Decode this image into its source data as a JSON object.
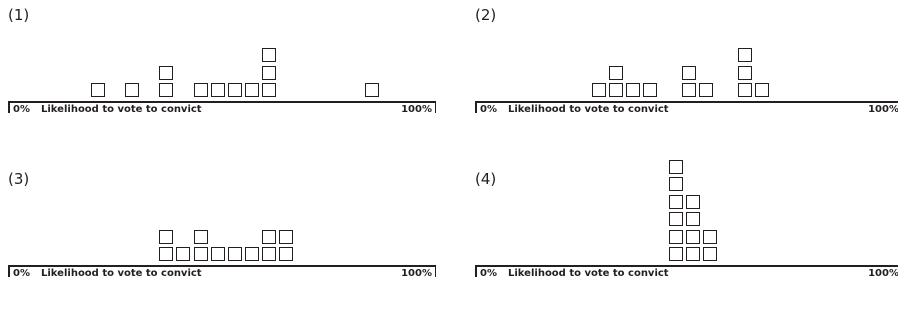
{
  "chart_data": [
    {
      "type": "dot-plot",
      "title": "(1)",
      "xlabel": "Likelihood to vote to convict",
      "xmin_label": "0%",
      "xmax_label": "100%",
      "xlim": [
        0,
        100
      ],
      "bins": [
        21,
        29,
        37,
        45,
        49,
        53,
        57,
        61,
        85
      ],
      "counts": [
        1,
        1,
        2,
        1,
        1,
        1,
        1,
        3,
        1
      ]
    },
    {
      "type": "dot-plot",
      "title": "(2)",
      "xlabel": "Likelihood to vote to convict",
      "xmin_label": "0%",
      "xmax_label": "100%",
      "xlim": [
        0,
        100
      ],
      "bins": [
        29,
        33,
        37,
        41,
        50,
        54,
        63,
        67
      ],
      "counts": [
        1,
        2,
        1,
        1,
        2,
        1,
        3,
        1
      ]
    },
    {
      "type": "dot-plot",
      "title": "(3)",
      "xlabel": "Likelihood to vote to convict",
      "xmin_label": "0%",
      "xmax_label": "100%",
      "xlim": [
        0,
        100
      ],
      "bins": [
        37,
        41,
        45,
        49,
        53,
        57,
        61,
        65
      ],
      "counts": [
        2,
        1,
        2,
        1,
        1,
        1,
        2,
        2
      ]
    },
    {
      "type": "dot-plot",
      "title": "(4)",
      "xlabel": "Likelihood to vote to convict",
      "xmin_label": "0%",
      "xmax_label": "100%",
      "xlim": [
        0,
        100
      ],
      "bins": [
        47,
        51,
        55
      ],
      "counts": [
        6,
        4,
        2
      ]
    }
  ]
}
